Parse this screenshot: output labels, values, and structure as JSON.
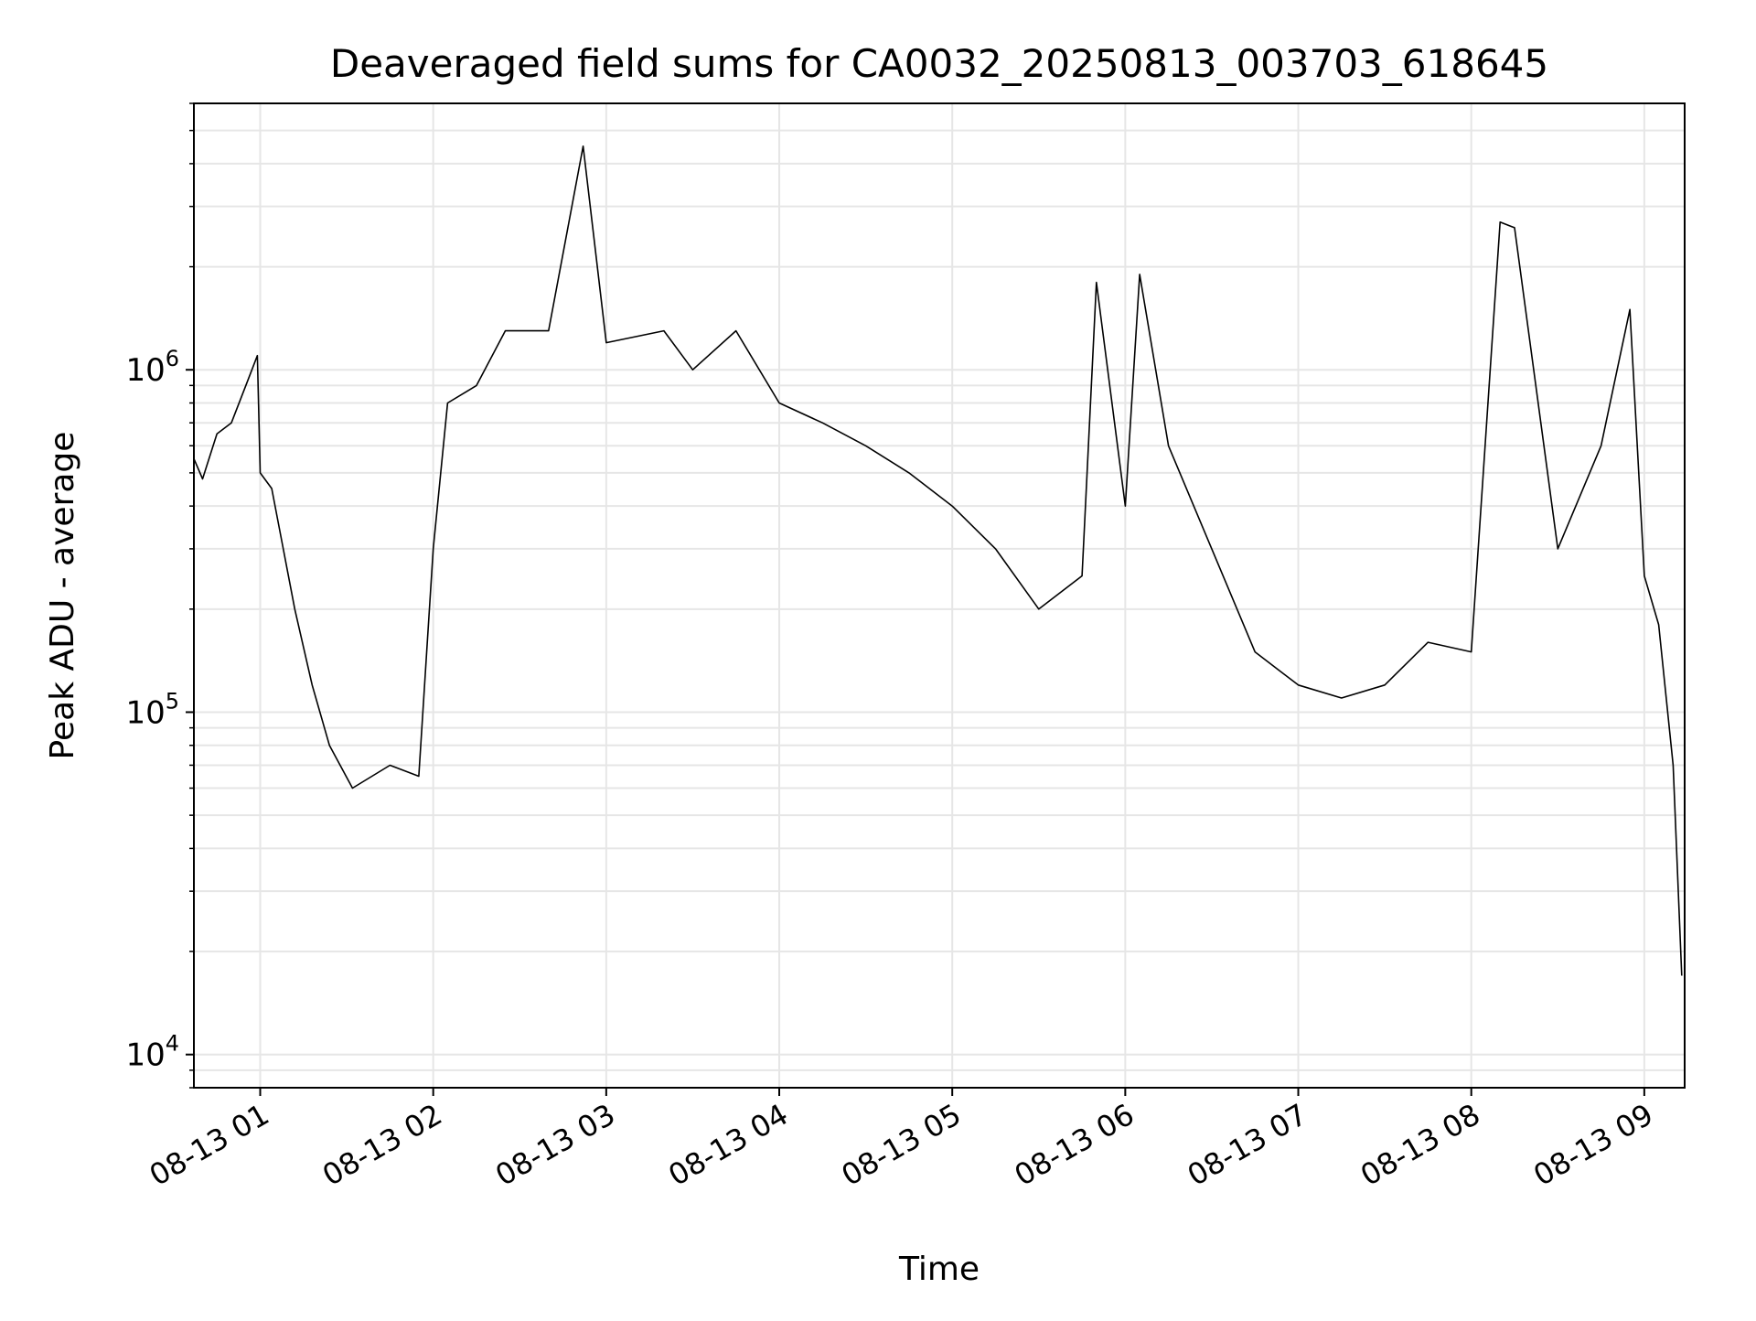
{
  "chart_data": {
    "type": "line",
    "title": "Deaveraged field sums for CA0032_20250813_003703_618645",
    "xlabel": "Time",
    "ylabel": "Peak ADU - average",
    "x_tick_labels": [
      "08-13 01",
      "08-13 02",
      "08-13 03",
      "08-13 04",
      "08-13 05",
      "08-13 06",
      "08-13 07",
      "08-13 08",
      "08-13 09"
    ],
    "x_tick_times": [
      "2025-08-13 01:00",
      "2025-08-13 02:00",
      "2025-08-13 03:00",
      "2025-08-13 04:00",
      "2025-08-13 05:00",
      "2025-08-13 06:00",
      "2025-08-13 07:00",
      "2025-08-13 08:00",
      "2025-08-13 09:00"
    ],
    "xlim": [
      "2025-08-13 00:37",
      "2025-08-13 09:14"
    ],
    "y_scale": "log",
    "ylim": [
      8000,
      6000000
    ],
    "y_tick_labels": [
      {
        "base": "10",
        "exp": "4",
        "value": 10000
      },
      {
        "base": "10",
        "exp": "5",
        "value": 100000
      },
      {
        "base": "10",
        "exp": "6",
        "value": 1000000
      }
    ],
    "grid": true,
    "grid_color": "#e6e6e6",
    "line_color": "#000000",
    "series": [
      {
        "points": [
          [
            "2025-08-13 00:37",
            550000
          ],
          [
            "2025-08-13 00:40",
            480000
          ],
          [
            "2025-08-13 00:45",
            650000
          ],
          [
            "2025-08-13 00:50",
            700000
          ],
          [
            "2025-08-13 00:55",
            900000
          ],
          [
            "2025-08-13 00:59",
            1100000
          ],
          [
            "2025-08-13 01:00",
            500000
          ],
          [
            "2025-08-13 01:04",
            450000
          ],
          [
            "2025-08-13 01:08",
            300000
          ],
          [
            "2025-08-13 01:12",
            200000
          ],
          [
            "2025-08-13 01:18",
            120000
          ],
          [
            "2025-08-13 01:24",
            80000
          ],
          [
            "2025-08-13 01:32",
            60000
          ],
          [
            "2025-08-13 01:45",
            70000
          ],
          [
            "2025-08-13 01:55",
            65000
          ],
          [
            "2025-08-13 02:00",
            300000
          ],
          [
            "2025-08-13 02:05",
            800000
          ],
          [
            "2025-08-13 02:15",
            900000
          ],
          [
            "2025-08-13 02:25",
            1300000
          ],
          [
            "2025-08-13 02:40",
            1300000
          ],
          [
            "2025-08-13 02:52",
            4500000
          ],
          [
            "2025-08-13 03:00",
            1200000
          ],
          [
            "2025-08-13 03:20",
            1300000
          ],
          [
            "2025-08-13 03:30",
            1000000
          ],
          [
            "2025-08-13 03:45",
            1300000
          ],
          [
            "2025-08-13 04:00",
            800000
          ],
          [
            "2025-08-13 04:15",
            700000
          ],
          [
            "2025-08-13 04:30",
            600000
          ],
          [
            "2025-08-13 04:45",
            500000
          ],
          [
            "2025-08-13 05:00",
            400000
          ],
          [
            "2025-08-13 05:15",
            300000
          ],
          [
            "2025-08-13 05:30",
            200000
          ],
          [
            "2025-08-13 05:45",
            250000
          ],
          [
            "2025-08-13 05:50",
            1800000
          ],
          [
            "2025-08-13 06:00",
            400000
          ],
          [
            "2025-08-13 06:05",
            1900000
          ],
          [
            "2025-08-13 06:15",
            600000
          ],
          [
            "2025-08-13 06:30",
            300000
          ],
          [
            "2025-08-13 06:45",
            150000
          ],
          [
            "2025-08-13 07:00",
            120000
          ],
          [
            "2025-08-13 07:15",
            110000
          ],
          [
            "2025-08-13 07:30",
            120000
          ],
          [
            "2025-08-13 07:45",
            160000
          ],
          [
            "2025-08-13 08:00",
            150000
          ],
          [
            "2025-08-13 08:10",
            2700000
          ],
          [
            "2025-08-13 08:15",
            2600000
          ],
          [
            "2025-08-13 08:30",
            300000
          ],
          [
            "2025-08-13 08:45",
            600000
          ],
          [
            "2025-08-13 08:55",
            1500000
          ],
          [
            "2025-08-13 09:00",
            250000
          ],
          [
            "2025-08-13 09:05",
            180000
          ],
          [
            "2025-08-13 09:10",
            70000
          ],
          [
            "2025-08-13 09:13",
            17000
          ]
        ]
      }
    ]
  }
}
